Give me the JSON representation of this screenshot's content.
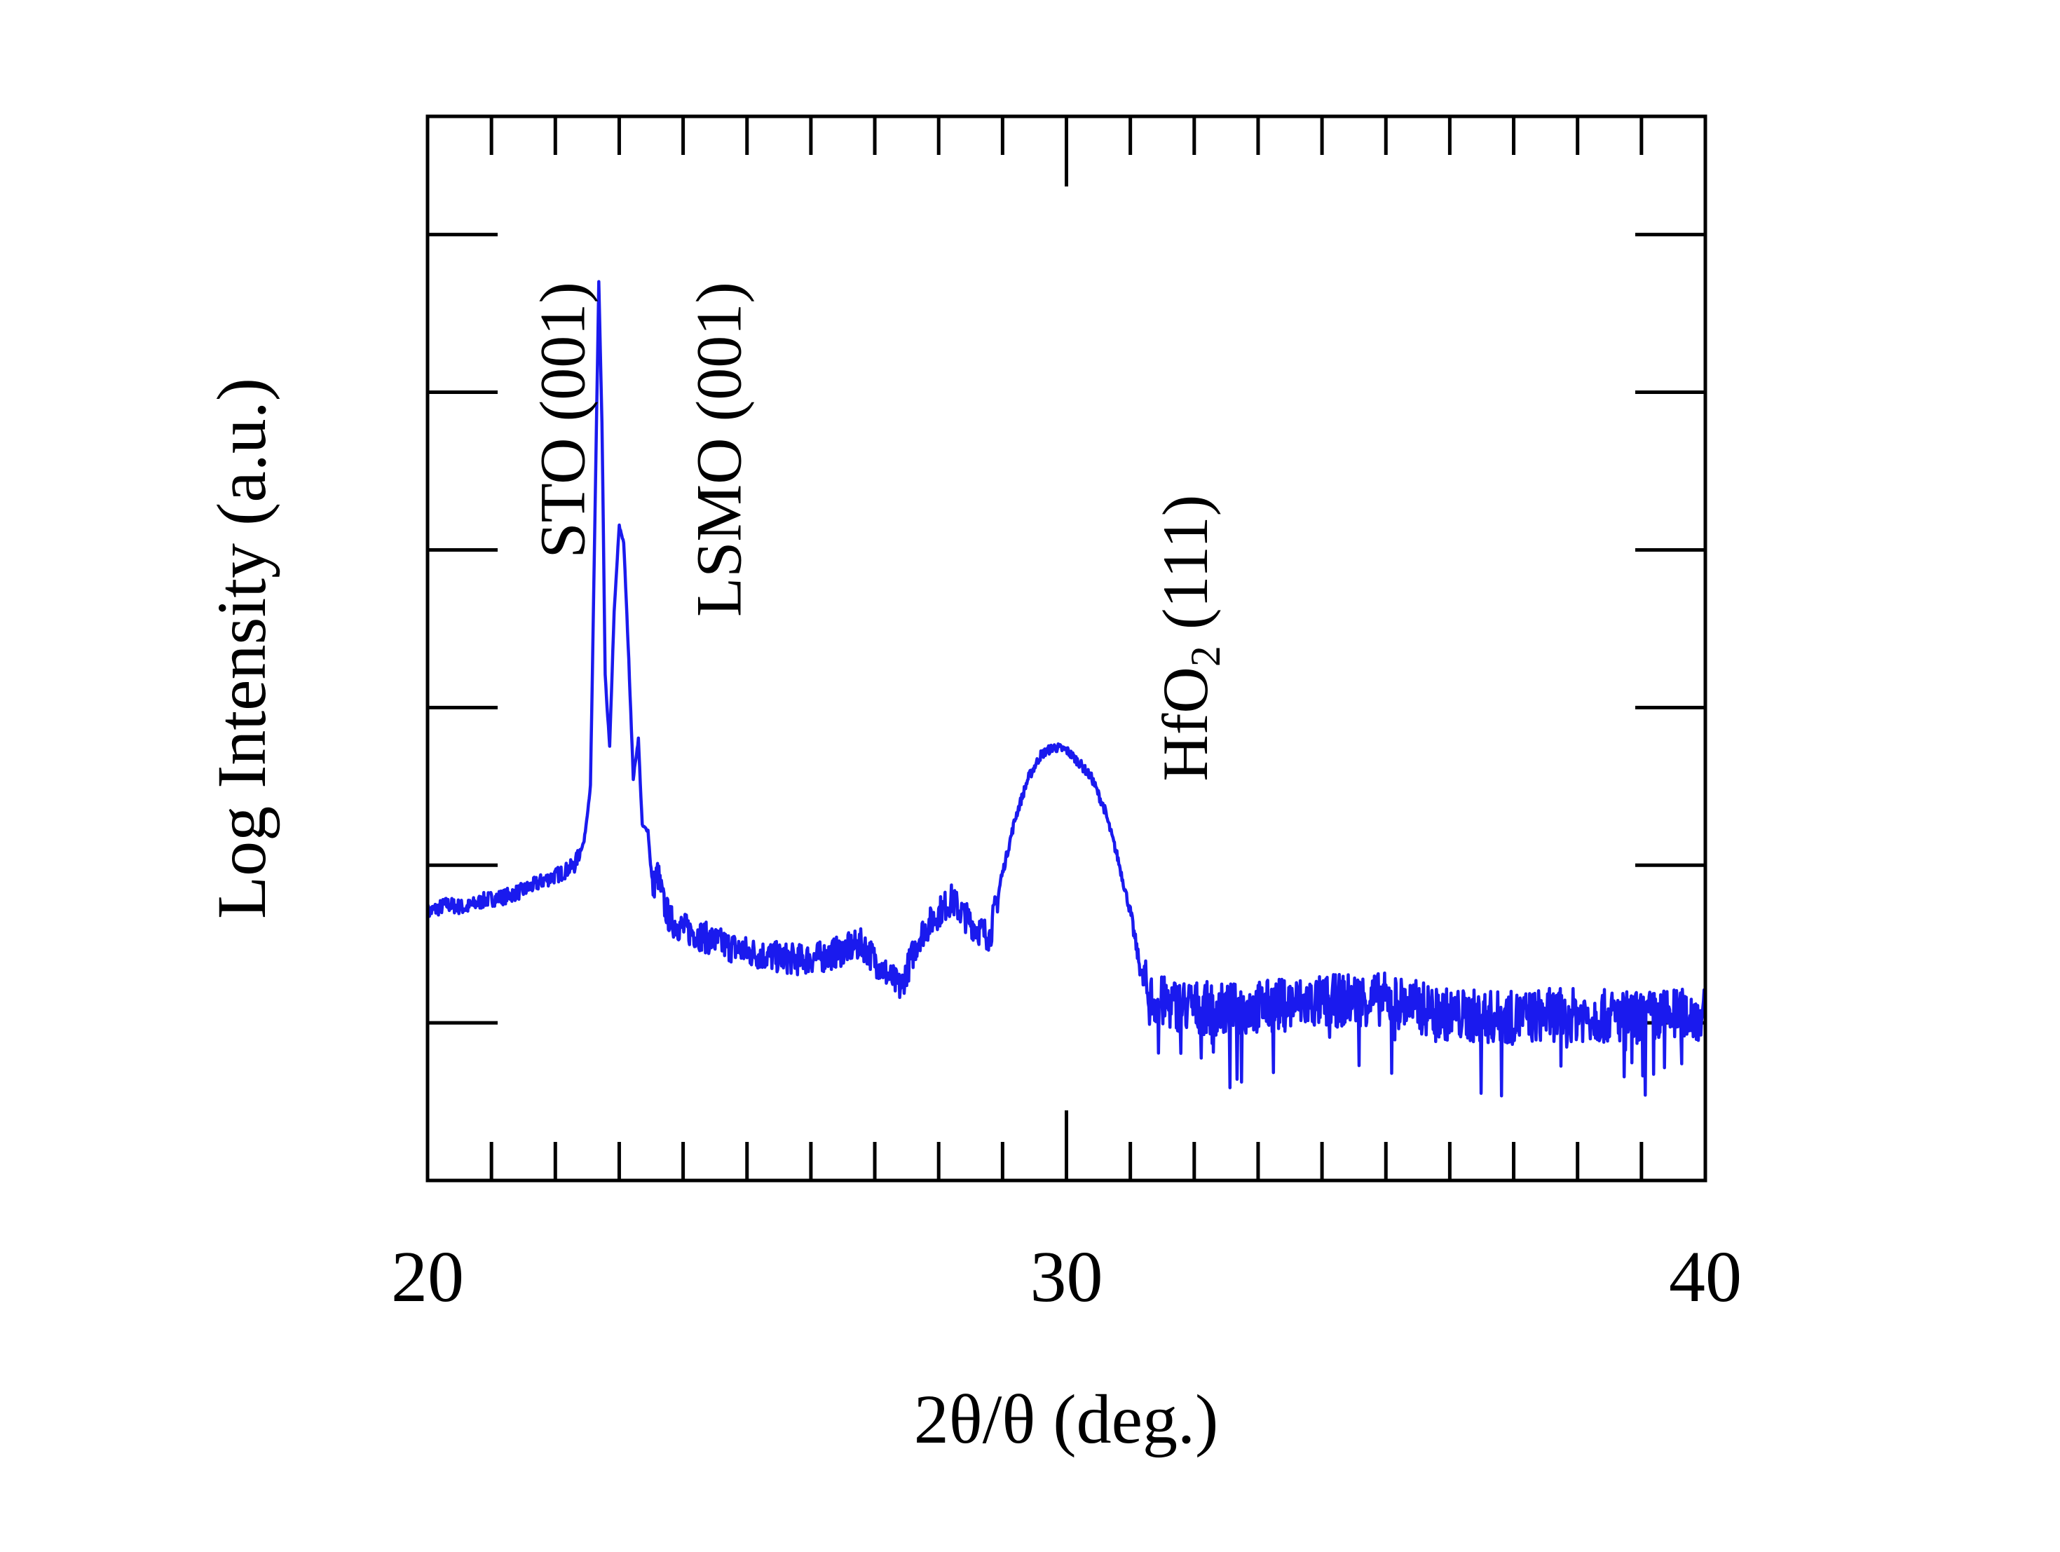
{
  "chart_data": {
    "type": "line",
    "title": "",
    "xlabel": "2θ/θ (deg.)",
    "ylabel": "Log Intensity (a.u.)",
    "xlim": [
      20,
      40
    ],
    "ylim": [
      0,
      6.75
    ],
    "x_tick_labels": [
      "20",
      "30",
      "40"
    ],
    "x_tick_values": [
      20,
      30,
      40
    ],
    "y_ticks_count": 6,
    "grid": false,
    "legend": "none",
    "line_color": "#1a1aee",
    "annotations": [
      {
        "text": "STO (001)",
        "x": 22.45,
        "y": 5.7,
        "rotation": -90
      },
      {
        "text": "LSMO (001)",
        "x": 24.9,
        "y": 5.7,
        "rotation": -90
      },
      {
        "text_main": "HfO",
        "text_sub": "2",
        "text_tail": " (111)",
        "x": 32.2,
        "y": 4.35,
        "rotation": -90
      }
    ],
    "series": [
      {
        "points": [
          [
            20.0,
            1.7
          ],
          [
            20.3,
            1.75
          ],
          [
            20.6,
            1.73
          ],
          [
            20.9,
            1.78
          ],
          [
            21.2,
            1.8
          ],
          [
            21.5,
            1.84
          ],
          [
            21.8,
            1.9
          ],
          [
            22.1,
            1.95
          ],
          [
            22.3,
            2.0
          ],
          [
            22.45,
            2.15
          ],
          [
            22.55,
            2.5
          ],
          [
            22.62,
            4.2
          ],
          [
            22.68,
            5.7
          ],
          [
            22.73,
            4.8
          ],
          [
            22.78,
            3.2
          ],
          [
            22.85,
            2.75
          ],
          [
            22.92,
            3.6
          ],
          [
            23.0,
            4.15
          ],
          [
            23.07,
            4.05
          ],
          [
            23.15,
            3.3
          ],
          [
            23.22,
            2.55
          ],
          [
            23.3,
            2.8
          ],
          [
            23.36,
            2.25
          ],
          [
            23.45,
            2.22
          ],
          [
            23.52,
            1.85
          ],
          [
            23.6,
            1.95
          ],
          [
            23.7,
            1.75
          ],
          [
            23.8,
            1.65
          ],
          [
            24.0,
            1.6
          ],
          [
            24.3,
            1.55
          ],
          [
            24.6,
            1.5
          ],
          [
            25.0,
            1.45
          ],
          [
            25.4,
            1.42
          ],
          [
            25.8,
            1.4
          ],
          [
            26.2,
            1.42
          ],
          [
            26.5,
            1.46
          ],
          [
            26.8,
            1.5
          ],
          [
            27.1,
            1.35
          ],
          [
            27.4,
            1.22
          ],
          [
            27.7,
            1.55
          ],
          [
            28.0,
            1.7
          ],
          [
            28.2,
            1.78
          ],
          [
            28.4,
            1.68
          ],
          [
            28.6,
            1.6
          ],
          [
            28.8,
            1.55
          ],
          [
            29.0,
            1.95
          ],
          [
            29.2,
            2.3
          ],
          [
            29.4,
            2.55
          ],
          [
            29.6,
            2.7
          ],
          [
            29.8,
            2.75
          ],
          [
            30.0,
            2.73
          ],
          [
            30.2,
            2.65
          ],
          [
            30.4,
            2.55
          ],
          [
            30.6,
            2.35
          ],
          [
            30.8,
            2.05
          ],
          [
            31.0,
            1.7
          ],
          [
            31.15,
            1.35
          ],
          [
            31.3,
            1.15
          ],
          [
            31.6,
            1.12
          ],
          [
            32.0,
            1.1
          ],
          [
            32.5,
            1.08
          ],
          [
            33.0,
            1.1
          ],
          [
            33.5,
            1.12
          ],
          [
            34.0,
            1.13
          ],
          [
            34.5,
            1.15
          ],
          [
            35.0,
            1.15
          ],
          [
            35.5,
            1.1
          ],
          [
            36.0,
            1.05
          ],
          [
            36.5,
            1.04
          ],
          [
            37.0,
            1.03
          ],
          [
            37.5,
            1.05
          ],
          [
            38.0,
            1.05
          ],
          [
            38.5,
            1.04
          ],
          [
            39.0,
            1.03
          ],
          [
            39.5,
            1.05
          ],
          [
            40.0,
            1.05
          ]
        ]
      }
    ]
  }
}
